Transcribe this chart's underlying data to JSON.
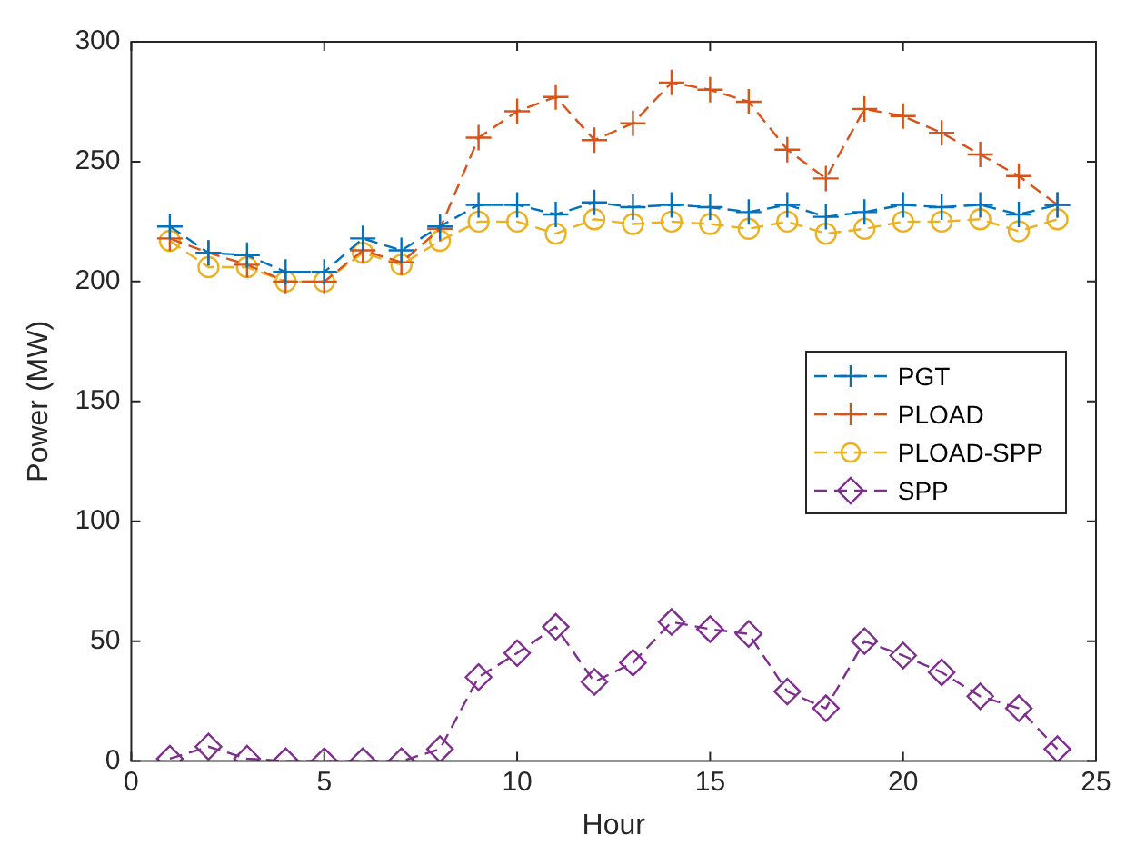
{
  "chart_data": {
    "type": "line",
    "xlabel": "Hour",
    "ylabel": "Power (MW)",
    "x": [
      1,
      2,
      3,
      4,
      5,
      6,
      7,
      8,
      9,
      10,
      11,
      12,
      13,
      14,
      15,
      16,
      17,
      18,
      19,
      20,
      21,
      22,
      23,
      24
    ],
    "xlim": [
      0,
      25
    ],
    "xticks": [
      0,
      5,
      10,
      15,
      20,
      25
    ],
    "ylim": [
      0,
      300
    ],
    "yticks": [
      0,
      50,
      100,
      150,
      200,
      250,
      300
    ],
    "grid": false,
    "legend": "right",
    "line_style": "dashed",
    "series": [
      {
        "name": "PGT",
        "color": "#0072bd",
        "marker": "cross",
        "values": [
          223,
          212,
          211,
          204,
          204,
          218,
          213,
          223,
          232,
          232,
          228,
          233,
          231,
          232,
          231,
          229,
          232,
          227,
          229,
          232,
          231,
          232,
          228,
          232
        ]
      },
      {
        "name": "PLOAD",
        "color": "#d95319",
        "marker": "cross",
        "values": [
          218,
          212,
          207,
          200,
          200,
          213,
          208,
          222,
          260,
          271,
          277,
          259,
          266,
          283,
          280,
          275,
          255,
          243,
          272,
          269,
          262,
          253,
          244,
          232
        ]
      },
      {
        "name": "PLOAD-SPP",
        "color": "#edb120",
        "marker": "circle",
        "values": [
          217,
          206,
          206,
          200,
          200,
          212,
          207,
          217,
          225,
          225,
          220,
          226,
          224,
          225,
          224,
          222,
          225,
          220,
          222,
          225,
          225,
          226,
          221,
          226
        ]
      },
      {
        "name": "SPP",
        "color": "#7e2f8e",
        "marker": "diamond",
        "values": [
          1,
          6,
          1,
          0,
          0,
          0,
          0,
          5,
          35,
          45,
          56,
          33,
          41,
          58,
          55,
          53,
          29,
          22,
          50,
          44,
          37,
          27,
          22,
          5
        ]
      }
    ]
  }
}
